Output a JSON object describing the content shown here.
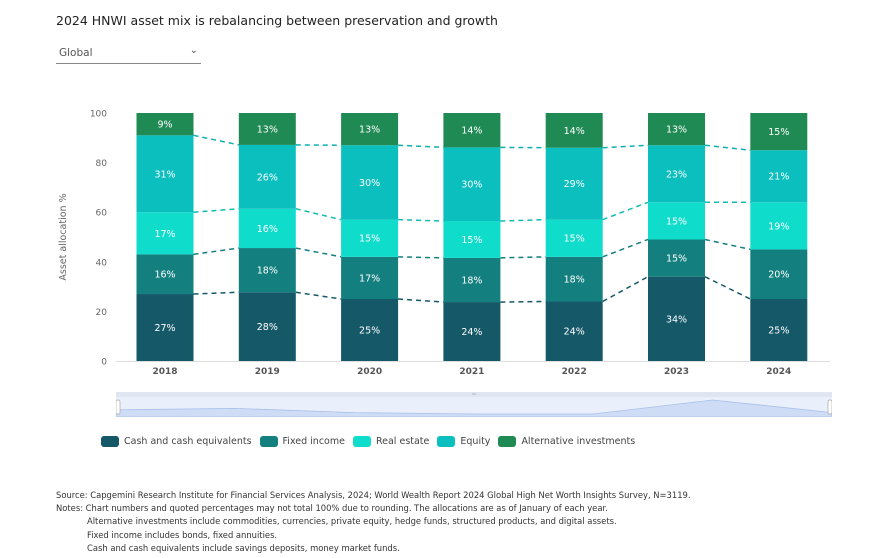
{
  "title": "2024 HNWI asset mix is rebalancing between preservation and growth",
  "region_select": {
    "value": "Global",
    "icon": "chevron-down-icon"
  },
  "chart_data": {
    "type": "bar",
    "stacked": true,
    "title": "2024 HNWI asset mix is rebalancing between preservation and growth",
    "xlabel": "",
    "ylabel": "Asset allocation %",
    "ylim": [
      0,
      100
    ],
    "yticks": [
      0,
      20,
      40,
      60,
      80,
      100
    ],
    "grid": false,
    "legend_position": "bottom-left",
    "connector_lines": "dashed",
    "categories": [
      "2018",
      "2019",
      "2020",
      "2021",
      "2022",
      "2023",
      "2024"
    ],
    "series": [
      {
        "name": "Cash and cash equivalents",
        "color": "#155868",
        "values": [
          27,
          28,
          25,
          24,
          24,
          34,
          25
        ]
      },
      {
        "name": "Fixed income",
        "color": "#137f7f",
        "values": [
          16,
          18,
          17,
          18,
          18,
          15,
          20
        ]
      },
      {
        "name": "Real estate",
        "color": "#0fdccb",
        "values": [
          17,
          16,
          15,
          15,
          15,
          15,
          19
        ]
      },
      {
        "name": "Equity",
        "color": "#0cbfbf",
        "values": [
          31,
          26,
          30,
          30,
          29,
          23,
          21
        ]
      },
      {
        "name": "Alternative investments",
        "color": "#208a55",
        "values": [
          9,
          13,
          13,
          14,
          14,
          13,
          15
        ]
      }
    ]
  },
  "notes": {
    "source": "Source: Capgemini Research Institute for Financial Services Analysis, 2024; World Wealth Report 2024 Global High Net Worth Insights Survey, N=3119.",
    "line1": "Notes: Chart numbers and quoted percentages may not total 100% due to rounding. The allocations are as of January of each year.",
    "line2": "Alternative investments include commodities, currencies, private equity, hedge funds, structured products, and digital assets.",
    "line3": "Fixed income includes bonds, fixed annuities.",
    "line4": "Cash and cash equivalents include savings deposits, money market funds."
  }
}
